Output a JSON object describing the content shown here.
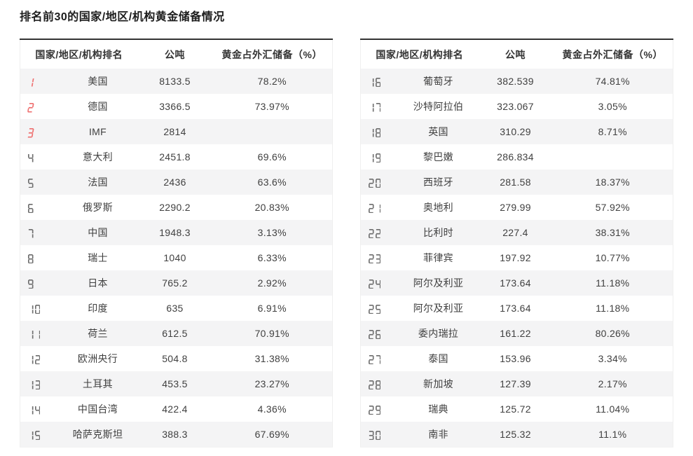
{
  "page_title": "排名前30的国家/地区/机构黄金储备情况",
  "table_headers": {
    "rank_name": "国家/地区/机构排名",
    "tons": "公吨",
    "pct": "黄金占外汇储备（%）"
  },
  "colors": {
    "accent_rank_top3": "#ee6e6e",
    "rank_gray": "#6e6e6e",
    "stripe": "#f4f4f5",
    "top_border": "#333333"
  },
  "tables": [
    {
      "name": "ranks-1-15",
      "rows": [
        {
          "rank": "1",
          "name": "美国",
          "tons": "8133.5",
          "pct": "78.2%"
        },
        {
          "rank": "2",
          "name": "德国",
          "tons": "3366.5",
          "pct": "73.97%"
        },
        {
          "rank": "3",
          "name": "IMF",
          "tons": "2814",
          "pct": ""
        },
        {
          "rank": "4",
          "name": "意大利",
          "tons": "2451.8",
          "pct": "69.6%"
        },
        {
          "rank": "5",
          "name": "法国",
          "tons": "2436",
          "pct": "63.6%"
        },
        {
          "rank": "6",
          "name": "俄罗斯",
          "tons": "2290.2",
          "pct": "20.83%"
        },
        {
          "rank": "7",
          "name": "中国",
          "tons": "1948.3",
          "pct": "3.13%"
        },
        {
          "rank": "8",
          "name": "瑞士",
          "tons": "1040",
          "pct": "6.33%"
        },
        {
          "rank": "9",
          "name": "日本",
          "tons": "765.2",
          "pct": "2.92%"
        },
        {
          "rank": "10",
          "name": "印度",
          "tons": "635",
          "pct": "6.91%"
        },
        {
          "rank": "11",
          "name": "荷兰",
          "tons": "612.5",
          "pct": "70.91%"
        },
        {
          "rank": "12",
          "name": "欧洲央行",
          "tons": "504.8",
          "pct": "31.38%"
        },
        {
          "rank": "13",
          "name": "土耳其",
          "tons": "453.5",
          "pct": "23.27%"
        },
        {
          "rank": "14",
          "name": "中国台湾",
          "tons": "422.4",
          "pct": "4.36%"
        },
        {
          "rank": "15",
          "name": "哈萨克斯坦",
          "tons": "388.3",
          "pct": "67.69%"
        }
      ]
    },
    {
      "name": "ranks-16-30",
      "rows": [
        {
          "rank": "16",
          "name": "葡萄牙",
          "tons": "382.539",
          "pct": "74.81%"
        },
        {
          "rank": "17",
          "name": "沙特阿拉伯",
          "tons": "323.067",
          "pct": "3.05%"
        },
        {
          "rank": "18",
          "name": "英国",
          "tons": "310.29",
          "pct": "8.71%"
        },
        {
          "rank": "19",
          "name": "黎巴嫩",
          "tons": "286.834",
          "pct": ""
        },
        {
          "rank": "20",
          "name": "西班牙",
          "tons": "281.58",
          "pct": "18.37%"
        },
        {
          "rank": "21",
          "name": "奥地利",
          "tons": "279.99",
          "pct": "57.92%"
        },
        {
          "rank": "22",
          "name": "比利时",
          "tons": "227.4",
          "pct": "38.31%"
        },
        {
          "rank": "23",
          "name": "菲律宾",
          "tons": "197.92",
          "pct": "10.77%"
        },
        {
          "rank": "24",
          "name": "阿尔及利亚",
          "tons": "173.64",
          "pct": "11.18%"
        },
        {
          "rank": "25",
          "name": "阿尔及利亚",
          "tons": "173.64",
          "pct": "11.18%"
        },
        {
          "rank": "26",
          "name": "委内瑞拉",
          "tons": "161.22",
          "pct": "80.26%"
        },
        {
          "rank": "27",
          "name": "泰国",
          "tons": "153.96",
          "pct": "3.34%"
        },
        {
          "rank": "28",
          "name": "新加坡",
          "tons": "127.39",
          "pct": "2.17%"
        },
        {
          "rank": "29",
          "name": "瑞典",
          "tons": "125.72",
          "pct": "11.04%"
        },
        {
          "rank": "30",
          "name": "南非",
          "tons": "125.32",
          "pct": "11.1%"
        }
      ]
    }
  ]
}
